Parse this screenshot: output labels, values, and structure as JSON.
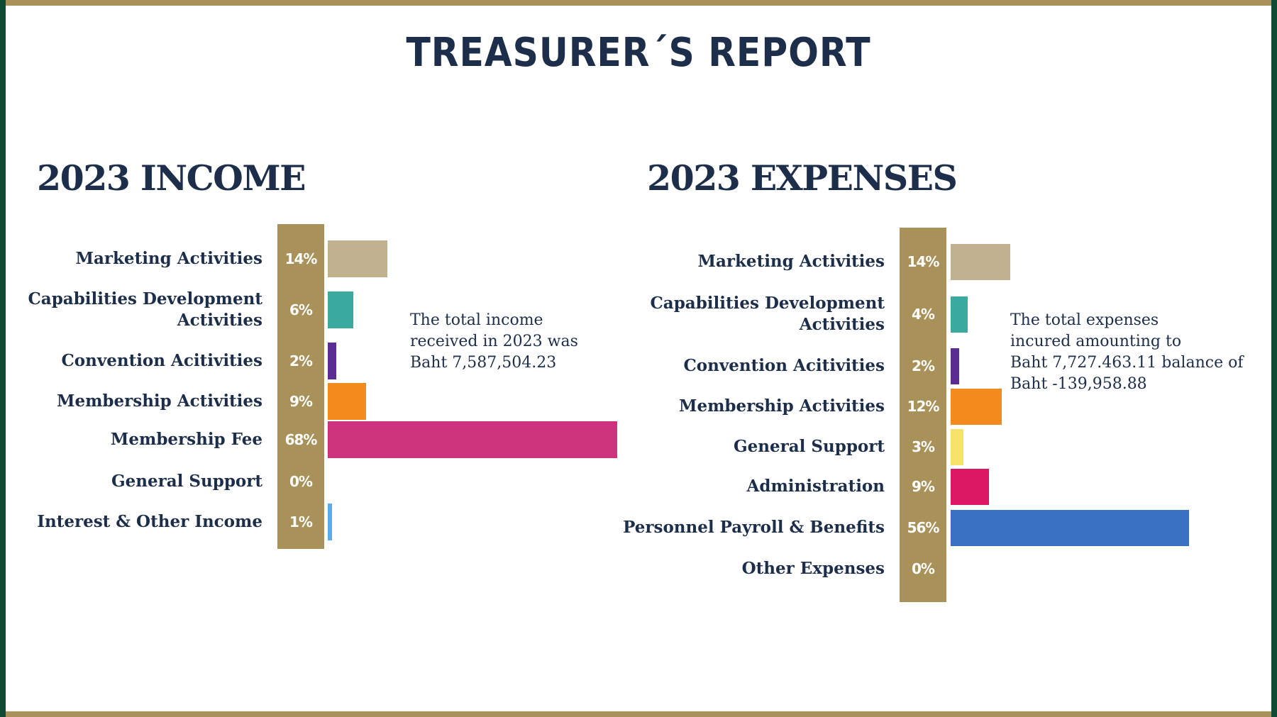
{
  "title": "TREASURER´S REPORT",
  "colors": {
    "frame_gold": "#a8925a",
    "frame_green": "#0f4a32",
    "pct_column": "#a8925a",
    "text_navy": "#1c2e4a"
  },
  "income_note": [
    "The total income",
    "received in 2023 was",
    "Baht 7,587,504.23"
  ],
  "expenses_note": [
    "The total expenses",
    "incured amounting to",
    "Baht 7,727.463.11 balance of",
    "Baht -139,958.88"
  ],
  "chart_data": [
    {
      "type": "bar",
      "title": "2023 INCOME",
      "categories": [
        [
          "Marketing Activities"
        ],
        [
          "Capabilities Development",
          "Activities"
        ],
        [
          "Convention Acitivities"
        ],
        [
          "Membership Activities"
        ],
        [
          "Membership Fee"
        ],
        [
          "General Support"
        ],
        [
          "Interest & Other Income"
        ]
      ],
      "values": [
        14,
        6,
        2,
        9,
        68,
        0,
        1
      ],
      "labels": [
        "14%",
        "6%",
        "2%",
        "9%",
        "68%",
        "0%",
        "1%"
      ],
      "colors": [
        "#c0b28e",
        "#3aa99e",
        "#5b2c91",
        "#f28a1e",
        "#cc347d",
        "#ffffff",
        "#55aee6"
      ]
    },
    {
      "type": "bar",
      "title": "2023 EXPENSES",
      "categories": [
        [
          "Marketing Activities"
        ],
        [
          "Capabilities Development",
          "Activities"
        ],
        [
          "Convention Acitivities"
        ],
        [
          "Membership Activities"
        ],
        [
          "General Support"
        ],
        [
          "Administration"
        ],
        [
          "Personnel Payroll & Benefits"
        ],
        [
          "Other Expenses"
        ]
      ],
      "values": [
        14,
        4,
        2,
        12,
        3,
        9,
        56,
        0
      ],
      "labels": [
        "14%",
        "4%",
        "2%",
        "12%",
        "3%",
        "9%",
        "56%",
        "0%"
      ],
      "colors": [
        "#c0b28e",
        "#3aa99e",
        "#5b2c91",
        "#f28a1e",
        "#f7e26b",
        "#dc1763",
        "#3b71c2",
        "#ffffff"
      ]
    }
  ]
}
